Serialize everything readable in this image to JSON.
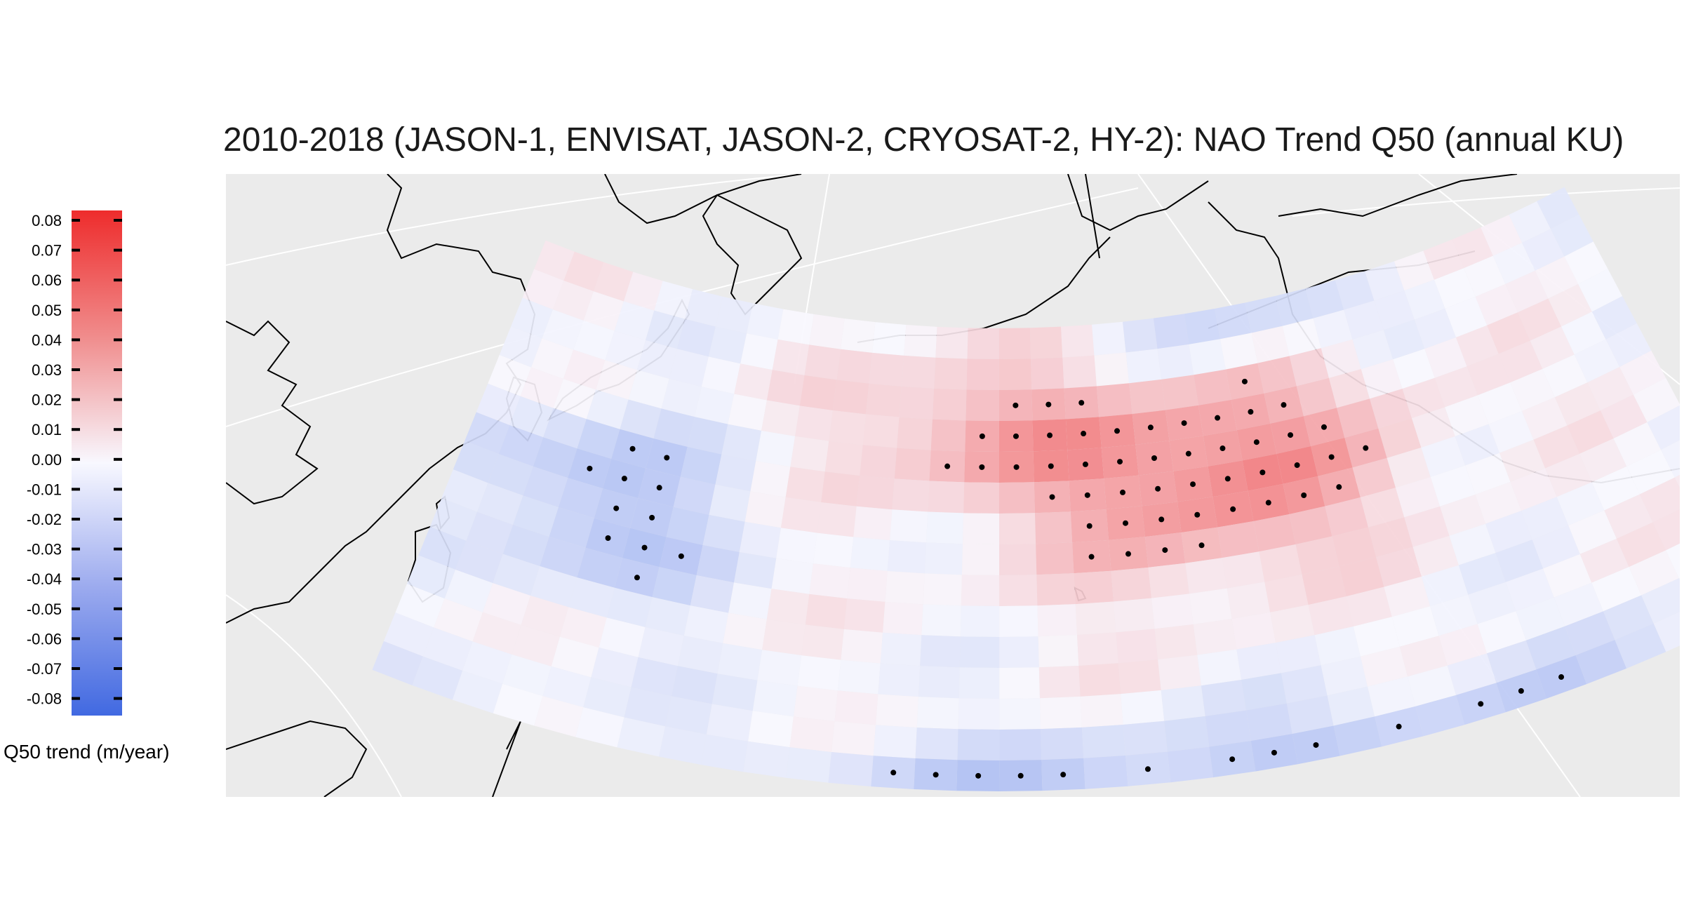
{
  "title": "2010-2018 (JASON-1, ENVISAT, JASON-2, CRYOSAT-2, HY-2): NAO Trend Q50 (annual KU)",
  "legend": {
    "title": "Q50 trend (m/year)",
    "ticks": [
      "0.08",
      "0.07",
      "0.06",
      "0.05",
      "0.04",
      "0.03",
      "0.02",
      "0.01",
      "0.00",
      "-0.01",
      "-0.02",
      "-0.03",
      "-0.04",
      "-0.05",
      "-0.06",
      "-0.07",
      "-0.08"
    ],
    "range": [
      -0.085,
      0.085
    ],
    "colors": {
      "low": "#4169e1",
      "mid": "#f8f8ff",
      "high": "#ee2c2c"
    }
  },
  "map": {
    "background": "#ebebeb",
    "land_outline": "#000000",
    "region": "North Pacific",
    "significance_marker": "dot"
  }
}
